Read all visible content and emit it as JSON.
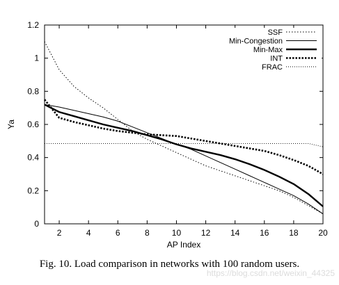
{
  "chart_data": {
    "type": "line",
    "xlabel": "AP Index",
    "ylabel": "Ya",
    "xlim": [
      1,
      20
    ],
    "ylim": [
      0,
      1.2
    ],
    "xticks": [
      "2",
      "4",
      "6",
      "8",
      "10",
      "12",
      "14",
      "16",
      "18",
      "20"
    ],
    "yticks": [
      "0",
      "0.2",
      "0.4",
      "0.6",
      "0.8",
      "1",
      "1.2"
    ],
    "legend_position": "top-right",
    "grid": false,
    "x": [
      1,
      2,
      3,
      4,
      5,
      6,
      7,
      8,
      9,
      10,
      11,
      12,
      13,
      14,
      15,
      16,
      17,
      18,
      19,
      20
    ],
    "series": [
      {
        "name": "SSF",
        "style": "dotted",
        "values": [
          1.1,
          0.93,
          0.83,
          0.76,
          0.7,
          0.63,
          0.56,
          0.51,
          0.47,
          0.43,
          0.39,
          0.35,
          0.32,
          0.29,
          0.26,
          0.23,
          0.2,
          0.16,
          0.11,
          0.06
        ]
      },
      {
        "name": "Min-Congestion",
        "style": "thin-solid",
        "values": [
          0.72,
          0.705,
          0.685,
          0.665,
          0.645,
          0.62,
          0.585,
          0.55,
          0.515,
          0.48,
          0.45,
          0.41,
          0.37,
          0.33,
          0.29,
          0.25,
          0.21,
          0.17,
          0.12,
          0.06
        ]
      },
      {
        "name": "Min-Max",
        "style": "thick-solid",
        "values": [
          0.72,
          0.675,
          0.65,
          0.625,
          0.6,
          0.58,
          0.56,
          0.535,
          0.51,
          0.48,
          0.455,
          0.435,
          0.415,
          0.39,
          0.36,
          0.325,
          0.285,
          0.24,
          0.18,
          0.105
        ]
      },
      {
        "name": "INT",
        "style": "thick-dotted",
        "values": [
          0.75,
          0.64,
          0.615,
          0.595,
          0.575,
          0.56,
          0.55,
          0.54,
          0.535,
          0.53,
          0.515,
          0.5,
          0.485,
          0.47,
          0.455,
          0.44,
          0.415,
          0.385,
          0.35,
          0.3
        ]
      },
      {
        "name": "FRAC",
        "style": "fine-dotted",
        "values": [
          0.485,
          0.485,
          0.485,
          0.485,
          0.485,
          0.485,
          0.485,
          0.485,
          0.485,
          0.485,
          0.485,
          0.485,
          0.485,
          0.485,
          0.485,
          0.485,
          0.485,
          0.485,
          0.485,
          0.465
        ]
      }
    ]
  },
  "caption": "Fig. 10.  Load comparison in networks with 100 random users.",
  "watermark": "https://blog.csdn.net/weixin_44325"
}
